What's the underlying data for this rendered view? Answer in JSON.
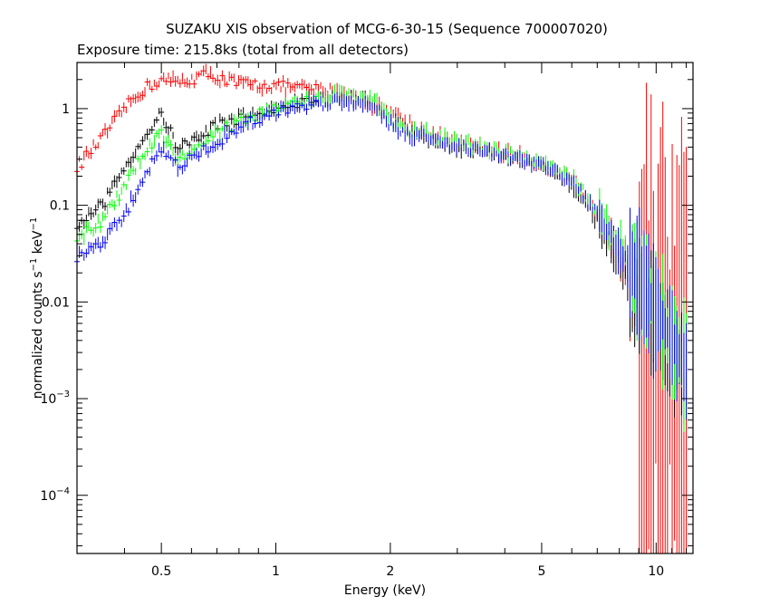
{
  "chart_data": {
    "type": "scatter",
    "title": "SUZAKU XIS observation of MCG-6-30-15 (Sequence 700007020)",
    "subtitle": "Exposure time: 215.8ks (total from all detectors)",
    "xlabel": "Energy (keV)",
    "ylabel": {
      "base": "normalized counts s",
      "exp1": "−1",
      "mid": " keV",
      "exp2": "−1"
    },
    "x_scale": "log",
    "y_scale": "log",
    "xlim": [
      0.3,
      12.5
    ],
    "ylim": [
      2.5e-05,
      3.0
    ],
    "grid": false,
    "x_ticks": [
      {
        "value": 0.5,
        "label": "0.5"
      },
      {
        "value": 1,
        "label": "1"
      },
      {
        "value": 2,
        "label": "2"
      },
      {
        "value": 5,
        "label": "5"
      },
      {
        "value": 10,
        "label": "10"
      }
    ],
    "y_ticks": [
      {
        "value": 1,
        "base": "1",
        "exp": ""
      },
      {
        "value": 0.1,
        "base": "0.1",
        "exp": ""
      },
      {
        "value": 0.01,
        "base": "0.01",
        "exp": ""
      },
      {
        "value": 0.001,
        "base": "10",
        "exp": "−3"
      },
      {
        "value": 0.0001,
        "base": "10",
        "exp": "−4"
      }
    ],
    "series": [
      {
        "color": "#ff0000",
        "x": [
          0.3,
          0.35,
          0.4,
          0.45,
          0.5,
          0.55,
          0.6,
          0.65,
          0.7,
          0.8,
          1.0,
          1.2,
          1.5,
          1.8,
          2.0,
          2.2,
          2.5,
          3.0,
          4.0,
          5.0,
          6.0,
          7.0,
          8.0,
          9.0,
          10.0,
          11.0,
          12.0
        ],
        "y": [
          0.25,
          0.5,
          1.0,
          1.6,
          2.0,
          1.9,
          2.0,
          2.3,
          2.1,
          1.8,
          1.7,
          1.6,
          1.5,
          1.1,
          0.95,
          0.75,
          0.55,
          0.45,
          0.35,
          0.28,
          0.18,
          0.08,
          0.03,
          0.012,
          0.006,
          0.005,
          0.004
        ]
      },
      {
        "color": "#000000",
        "x": [
          0.3,
          0.35,
          0.4,
          0.45,
          0.5,
          0.55,
          0.6,
          0.7,
          0.8,
          1.0,
          1.2,
          1.5,
          1.8,
          2.0,
          2.2,
          2.5,
          3.0,
          4.0,
          5.0,
          6.0,
          7.0,
          8.0,
          9.0,
          10.0,
          11.0,
          12.0
        ],
        "y": [
          0.06,
          0.1,
          0.25,
          0.5,
          0.9,
          0.4,
          0.45,
          0.7,
          0.8,
          1.0,
          1.2,
          1.3,
          1.2,
          0.8,
          0.6,
          0.5,
          0.4,
          0.32,
          0.25,
          0.16,
          0.07,
          0.025,
          0.012,
          0.006,
          0.003,
          0.002
        ]
      },
      {
        "color": "#00ff00",
        "x": [
          0.3,
          0.35,
          0.4,
          0.45,
          0.5,
          0.55,
          0.6,
          0.7,
          0.8,
          1.0,
          1.2,
          1.5,
          1.8,
          2.0,
          2.2,
          2.5,
          3.0,
          4.0,
          5.0,
          6.0,
          7.0,
          8.0,
          9.0,
          10.0,
          11.0,
          12.0
        ],
        "y": [
          0.045,
          0.07,
          0.15,
          0.35,
          0.6,
          0.3,
          0.35,
          0.55,
          0.75,
          1.0,
          1.2,
          1.4,
          1.3,
          0.8,
          0.6,
          0.55,
          0.45,
          0.35,
          0.28,
          0.2,
          0.09,
          0.04,
          0.018,
          0.008,
          0.004,
          0.002
        ]
      },
      {
        "color": "#0000ff",
        "x": [
          0.3,
          0.35,
          0.4,
          0.45,
          0.5,
          0.55,
          0.6,
          0.7,
          0.8,
          1.0,
          1.2,
          1.5,
          1.8,
          2.0,
          2.2,
          2.5,
          3.0,
          4.0,
          5.0,
          6.0,
          7.0,
          8.0,
          9.0,
          10.0,
          11.0,
          12.0
        ],
        "y": [
          0.03,
          0.04,
          0.08,
          0.2,
          0.4,
          0.25,
          0.3,
          0.45,
          0.65,
          0.9,
          1.1,
          1.2,
          1.1,
          0.7,
          0.55,
          0.5,
          0.42,
          0.32,
          0.26,
          0.18,
          0.08,
          0.035,
          0.018,
          0.008,
          0.004,
          0.002
        ]
      }
    ]
  }
}
